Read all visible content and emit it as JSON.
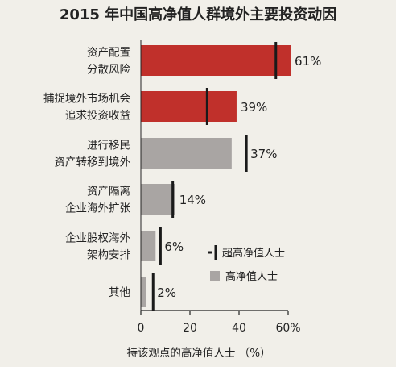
{
  "chart_data": {
    "type": "bar",
    "orientation": "horizontal",
    "title": "2015 年中国高净值人群境外主要投资动因",
    "categories": [
      [
        "资产配置",
        "分散风险"
      ],
      [
        "捕捉境外市场机会",
        "追求投资收益"
      ],
      [
        "进行移民",
        "资产转移到境外"
      ],
      [
        "资产隔离",
        "企业海外扩张"
      ],
      [
        "企业股权海外",
        "架构安排"
      ],
      [
        "其他"
      ]
    ],
    "series": [
      {
        "name": "高净值人士",
        "values": [
          61,
          39,
          37,
          14,
          6,
          2
        ]
      },
      {
        "name": "超高净值人士",
        "values": [
          55,
          27,
          43,
          13,
          8,
          5
        ]
      }
    ],
    "value_labels": [
      "61%",
      "39%",
      "37%",
      "14%",
      "6%",
      "2%"
    ],
    "bar_colors": [
      "#c0302b",
      "#c0302b",
      "#a9a5a3",
      "#a9a5a3",
      "#a9a5a3",
      "#a9a5a3"
    ],
    "xlim": [
      0,
      60
    ],
    "xticks": [
      "0",
      "20",
      "40",
      "60%"
    ],
    "xlabel": "持该观点的高净值人士  （%）",
    "legend": {
      "position": "right",
      "entries": [
        {
          "label": "超高净值人士",
          "marker": "tick",
          "color": "#1a1a1a"
        },
        {
          "label": "高净值人士",
          "marker": "square",
          "color": "#a9a5a3"
        }
      ]
    },
    "grid": false
  }
}
